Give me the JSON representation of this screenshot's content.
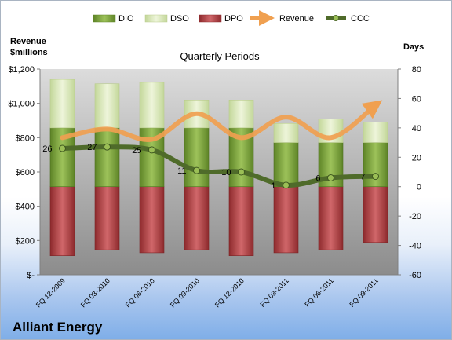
{
  "company_title": "Alliant Energy",
  "chart_data": {
    "type": "bar",
    "subtype": "stacked bar with line overlays",
    "title": "Quarterly Periods",
    "left_axis_title_line1": "Revenue",
    "left_axis_title_line2": "$millions",
    "right_axis_title": "Days",
    "categories": [
      "FQ 12-2009",
      "FQ 03-2010",
      "FQ 06-2010",
      "FQ 09-2010",
      "FQ 12-2010",
      "FQ 03-2011",
      "FQ 06-2011",
      "FQ 09-2011"
    ],
    "left_axis": {
      "min": 0,
      "max": 1200,
      "step": 200,
      "tick_labels": [
        "$-",
        "$200",
        "$400",
        "$600",
        "$800",
        "$1,000",
        "$1,200"
      ]
    },
    "right_axis": {
      "min": -60,
      "max": 80,
      "step": 20,
      "tick_labels": [
        "-60",
        "-40",
        "-20",
        "0",
        "20",
        "40",
        "60",
        "80"
      ]
    },
    "dpo_days": [
      -47,
      -43,
      -45,
      -43,
      -47,
      -45,
      -43,
      -38
    ],
    "dio_days": [
      40,
      40,
      40,
      40,
      40,
      30,
      30,
      30
    ],
    "dso_days": [
      33,
      30,
      31,
      19,
      19,
      13,
      16,
      14
    ],
    "revenue": [
      800,
      850,
      790,
      940,
      800,
      920,
      800,
      990
    ],
    "ccc": [
      26,
      27,
      25,
      11,
      10,
      1,
      6,
      7
    ],
    "ccc_labels": [
      "26",
      "27",
      "25",
      "11",
      "10",
      "1",
      "6",
      "7"
    ],
    "series": [
      {
        "name": "DIO",
        "color": "#7fa33c"
      },
      {
        "name": "DSO",
        "color": "#d8e8b0"
      },
      {
        "name": "DPO",
        "color": "#b2393c"
      },
      {
        "name": "Revenue",
        "color": "#f0a050"
      },
      {
        "name": "CCC",
        "color": "#4f6b2a"
      }
    ],
    "legend_position": "top",
    "grid": false
  }
}
